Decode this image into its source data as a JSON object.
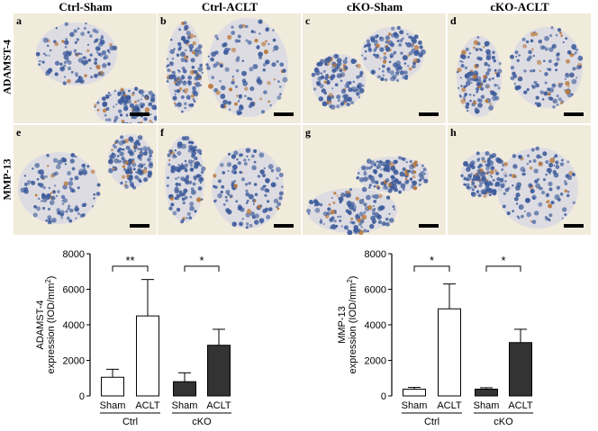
{
  "columns": [
    "Ctrl-Sham",
    "Ctrl-ACLT",
    "cKO-Sham",
    "cKO-ACLT"
  ],
  "rows": [
    "ADAMST-4",
    "MMP-13"
  ],
  "panels": [
    {
      "letter": "a"
    },
    {
      "letter": "b"
    },
    {
      "letter": "c"
    },
    {
      "letter": "d"
    },
    {
      "letter": "e"
    },
    {
      "letter": "f"
    },
    {
      "letter": "g"
    },
    {
      "letter": "h"
    }
  ],
  "colors": {
    "tissue": "#f1ebdc",
    "stain_blue": "#3b5a9a",
    "stain_brown": "#b8773a",
    "bar_dark": "#333333"
  },
  "chart_data": [
    {
      "type": "bar",
      "ylabel_line1": "ADAMST-4",
      "ylabel_line2": "expression (IOD/mm",
      "ylabel_sup": "2",
      "ylabel_end": ")",
      "ylim": [
        0,
        8000
      ],
      "yticks": [
        "0",
        "2000",
        "4000",
        "6000",
        "8000"
      ],
      "categories": [
        "Sham",
        "ACLT",
        "Sham",
        "ACLT"
      ],
      "groups": [
        "Ctrl",
        "cKO"
      ],
      "values": [
        1050,
        4500,
        800,
        2850
      ],
      "errors": [
        450,
        2050,
        500,
        900
      ],
      "fills": [
        "white",
        "white",
        "dark",
        "dark"
      ],
      "significance": [
        {
          "label": "**",
          "from": 0,
          "to": 1,
          "y": 7300
        },
        {
          "label": "*",
          "from": 2,
          "to": 3,
          "y": 7300
        }
      ]
    },
    {
      "type": "bar",
      "ylabel_line1": "MMP-13",
      "ylabel_line2": "expression (IOD/mm",
      "ylabel_sup": "2",
      "ylabel_end": ")",
      "ylim": [
        0,
        8000
      ],
      "yticks": [
        "0",
        "2000",
        "4000",
        "6000",
        "8000"
      ],
      "categories": [
        "Sham",
        "ACLT",
        "Sham",
        "ACLT"
      ],
      "groups": [
        "Ctrl",
        "cKO"
      ],
      "values": [
        380,
        4900,
        380,
        3000
      ],
      "errors": [
        100,
        1400,
        80,
        750
      ],
      "fills": [
        "white",
        "white",
        "dark",
        "dark"
      ],
      "significance": [
        {
          "label": "*",
          "from": 0,
          "to": 1,
          "y": 7300
        },
        {
          "label": "*",
          "from": 2,
          "to": 3,
          "y": 7300
        }
      ]
    }
  ]
}
